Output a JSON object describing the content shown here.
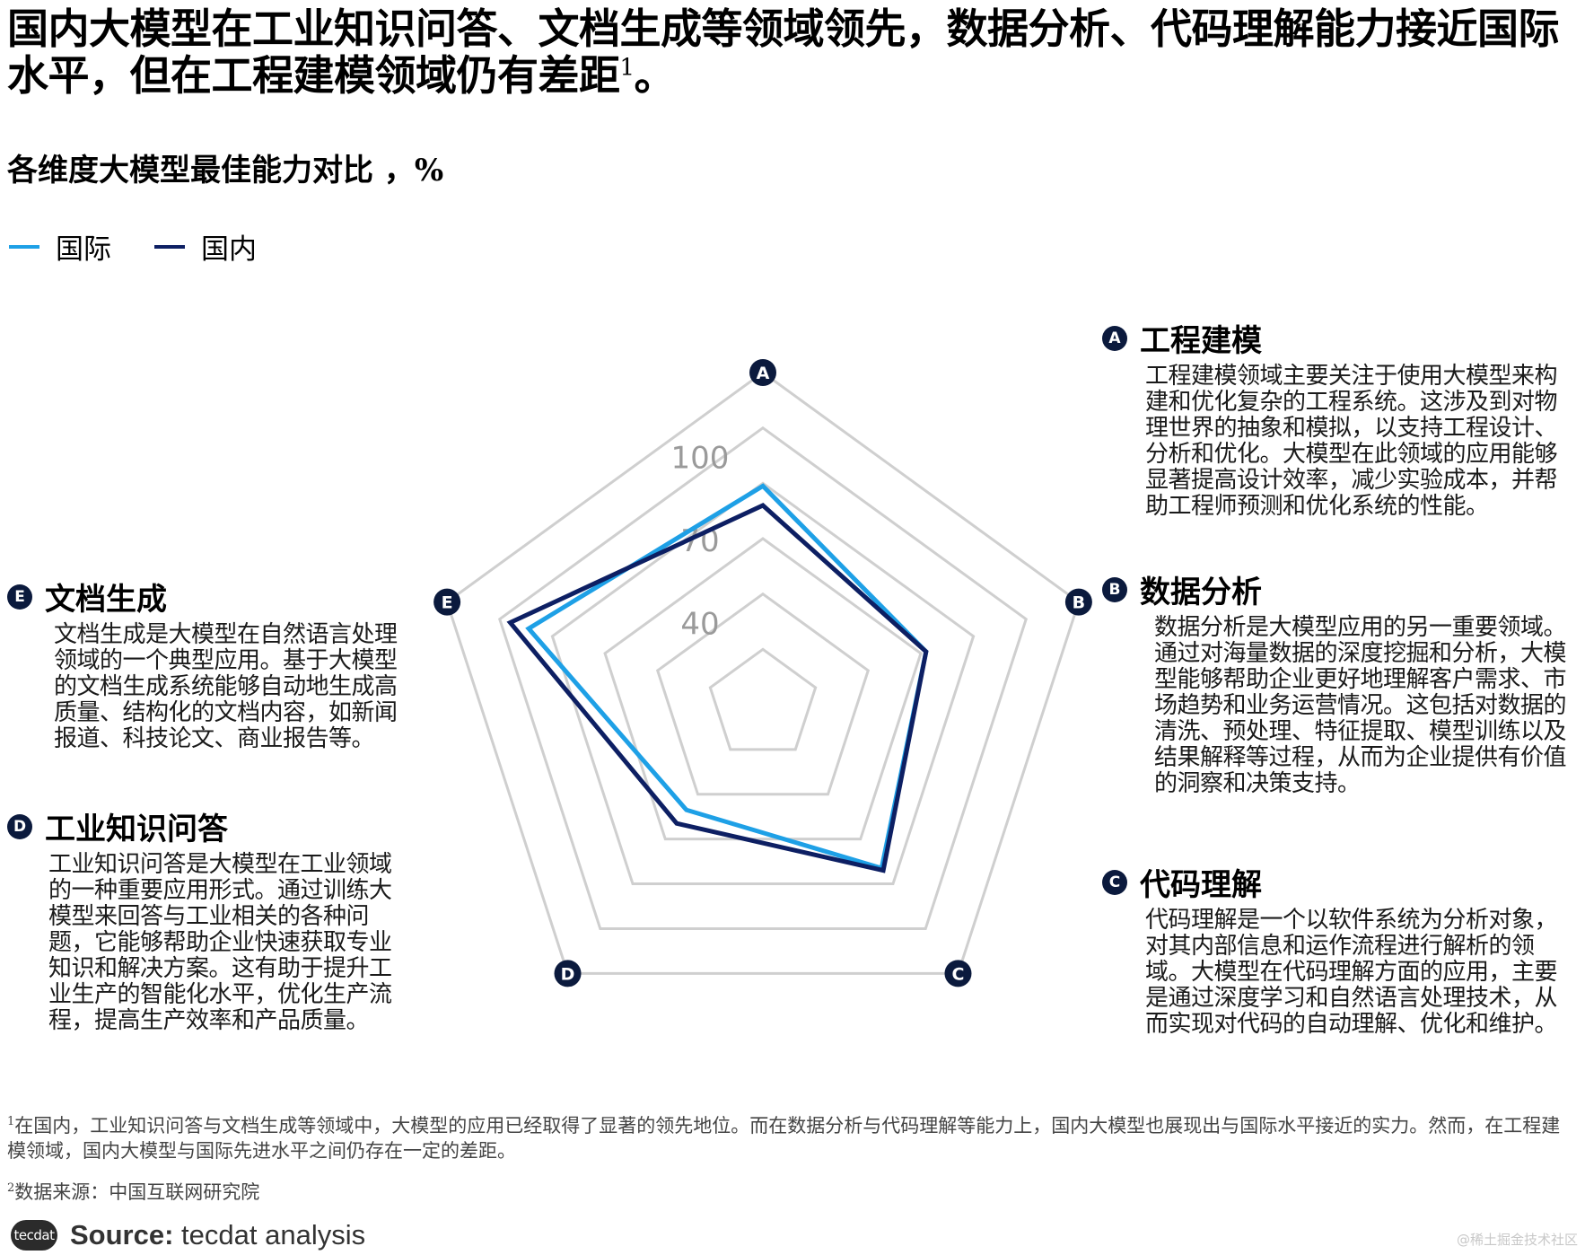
{
  "headline": {
    "text": "国内大模型在工业知识问答、文档生成等领域领先，数据分析、代码理解能力接近国际水平，但在工程建模领域仍有差距",
    "sup": "1",
    "end": "。"
  },
  "subtitle": "各维度大模型最佳能力对比 ，%",
  "legend": [
    {
      "label": "国际",
      "color": "#1ea0e6"
    },
    {
      "label": "国内",
      "color": "#0d1f63"
    }
  ],
  "chart_data": {
    "type": "radar",
    "title": "各维度大模型最佳能力对比 ，%",
    "axes": [
      "A",
      "B",
      "C",
      "D",
      "E"
    ],
    "rlim": [
      10,
      130
    ],
    "ticks": [
      40,
      70,
      100
    ],
    "series": [
      {
        "name": "国际",
        "color": "#1ea0e6",
        "values": [
          89,
          72,
          83,
          57,
          99
        ]
      },
      {
        "name": "国内",
        "color": "#0d1f63",
        "values": [
          82,
          72,
          84,
          63,
          106
        ]
      }
    ],
    "grid": true
  },
  "dimensions": [
    {
      "id": "A",
      "title": "工程建模",
      "desc": "工程建模领域主要关注于使用大模型来构建和优化复杂的工程系统。这涉及到对物理世界的抽象和模拟，以支持工程设计、分析和优化。大模型在此领域的应用能够显著提高设计效率，减少实验成本，并帮助工程师预测和优化系统的性能。"
    },
    {
      "id": "B",
      "title": "数据分析",
      "desc": "数据分析是大模型应用的另一重要领域。通过对海量数据的深度挖掘和分析，大模型能够帮助企业更好地理解客户需求、市场趋势和业务运营情况。这包括对数据的清洗、预处理、特征提取、模型训练以及结果解释等过程，从而为企业提供有价值的洞察和决策支持。"
    },
    {
      "id": "C",
      "title": "代码理解",
      "desc": "代码理解是一个以软件系统为分析对象，对其内部信息和运作流程进行解析的领域。大模型在代码理解方面的应用，主要是通过深度学习和自然语言处理技术，从而实现对代码的自动理解、优化和维护。"
    },
    {
      "id": "D",
      "title": "工业知识问答",
      "desc": "工业知识问答是大模型在工业领域的一种重要应用形式。通过训练大模型来回答与工业相关的各种问题，它能够帮助企业快速获取专业知识和解决方案。这有助于提升工业生产的智能化水平，优化生产流程，提高生产效率和产品质量。"
    },
    {
      "id": "E",
      "title": "文档生成",
      "desc": "文档生成是大模型在自然语言处理领域的一个典型应用。基于大模型的文档生成系统能够自动地生成高质量、结构化的文档内容，如新闻报道、科技论文、商业报告等。"
    }
  ],
  "footnotes": [
    {
      "num": "1",
      "text": "在国内，工业知识问答与文档生成等领域中，大模型的应用已经取得了显著的领先地位。而在数据分析与代码理解等能力上，国内大模型也展现出与国际水平接近的实力。然而，在工程建模领域，国内大模型与国际先进水平之间仍存在一定的差距。"
    },
    {
      "num": "2",
      "text": "数据来源：中国互联网研究院"
    }
  ],
  "source": {
    "logo": "tecdat",
    "label": "Source:",
    "text": "tecdat analysis"
  },
  "watermark": "@稀土掘金技术社区"
}
